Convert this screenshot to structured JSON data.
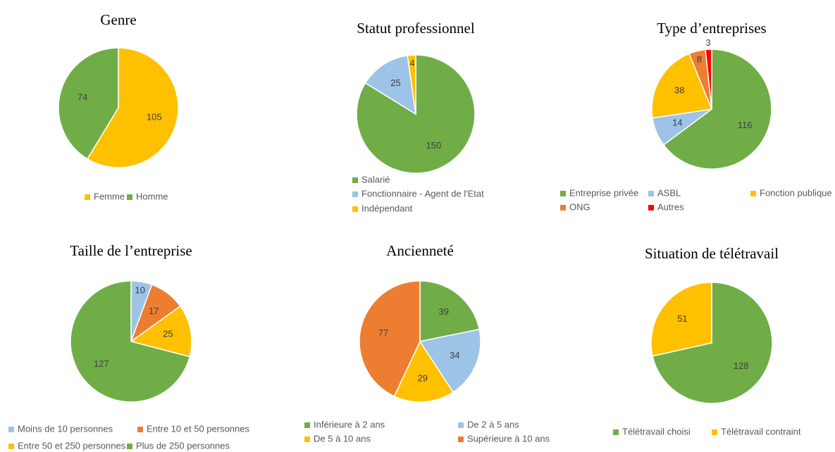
{
  "chart_data": [
    {
      "type": "pie",
      "title": "Genre",
      "categories": [
        "Femme",
        "Homme"
      ],
      "values": [
        105,
        74
      ],
      "colors": [
        "#ffc000",
        "#70ad47"
      ]
    },
    {
      "type": "pie",
      "title": "Statut professionnel",
      "categories": [
        "Salarié",
        "Fonctionnaire - Agent de l'Etat",
        "Indépendant"
      ],
      "values": [
        150,
        25,
        4
      ],
      "colors": [
        "#70ad47",
        "#9dc3e6",
        "#ffc000"
      ]
    },
    {
      "type": "pie",
      "title": "Type d’entreprises",
      "categories": [
        "Entreprise privée",
        "ASBL",
        "Fonction publique",
        "ONG",
        "Autres"
      ],
      "values": [
        116,
        14,
        38,
        8,
        3
      ],
      "colors": [
        "#70ad47",
        "#9dc3e6",
        "#ffc000",
        "#ed7d31",
        "#ff0000"
      ]
    },
    {
      "type": "pie",
      "title": "Taille de l’entreprise",
      "categories": [
        "Moins de 10 personnes",
        "Entre 10 et 50 personnes",
        "Entre 50 et 250 personnes",
        "Plus de 250 personnes"
      ],
      "values": [
        10,
        17,
        25,
        127
      ],
      "colors": [
        "#9dc3e6",
        "#ed7d31",
        "#ffc000",
        "#70ad47"
      ]
    },
    {
      "type": "pie",
      "title": "Ancienneté",
      "categories": [
        "Inférieure à 2 ans",
        "De 2 à 5 ans",
        "De 5 à 10 ans",
        "Supérieure à 10 ans"
      ],
      "values": [
        39,
        34,
        29,
        77
      ],
      "colors": [
        "#70ad47",
        "#9dc3e6",
        "#ffc000",
        "#ed7d31"
      ]
    },
    {
      "type": "pie",
      "title": "Situation de télétravail",
      "categories": [
        "Télétravail choisi",
        "Télétravail contraint"
      ],
      "values": [
        128,
        51
      ],
      "colors": [
        "#70ad47",
        "#ffc000"
      ]
    }
  ]
}
